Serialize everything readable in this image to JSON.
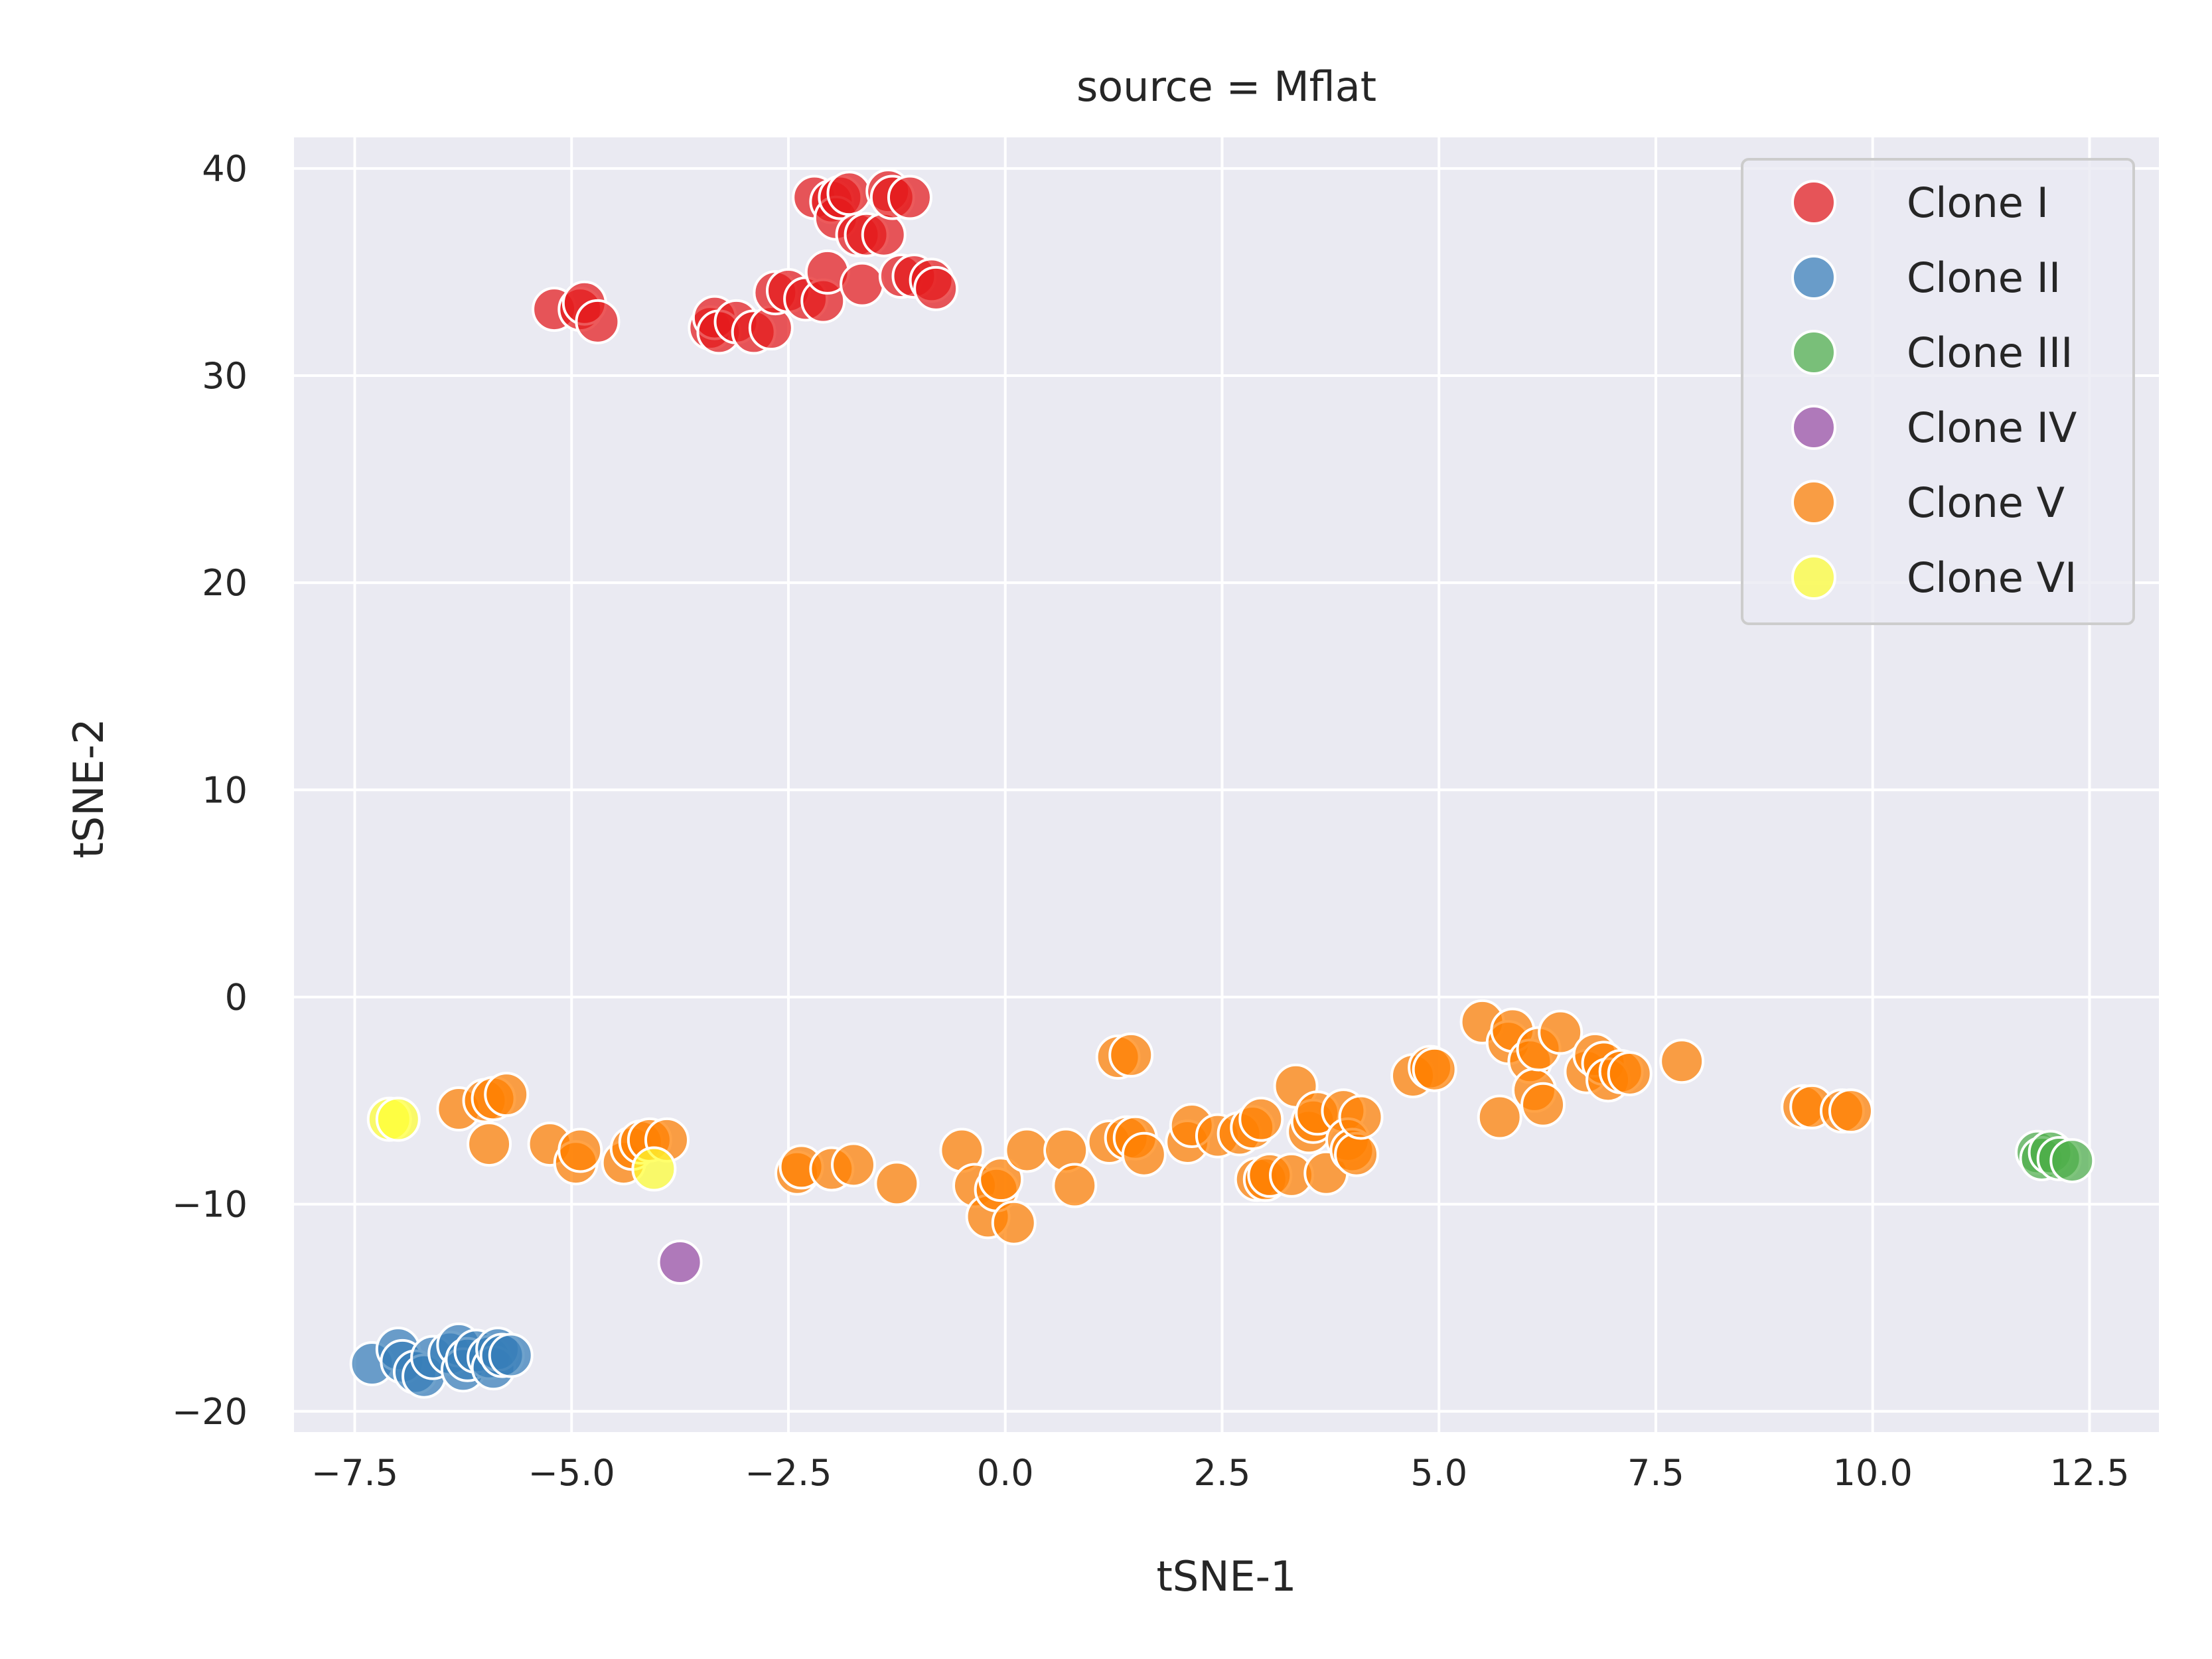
{
  "chart_data": {
    "type": "scatter",
    "title": "source = Mflat",
    "xlabel": "tSNE-1",
    "ylabel": "tSNE-2",
    "xlim": [
      -8.2,
      13.3
    ],
    "ylim": [
      -21,
      41.5
    ],
    "xticks": [
      -7.5,
      -5.0,
      -2.5,
      0.0,
      2.5,
      5.0,
      7.5,
      10.0,
      12.5
    ],
    "xtick_labels": [
      "−7.5",
      "−5.0",
      "−2.5",
      "0.0",
      "2.5",
      "5.0",
      "7.5",
      "10.0",
      "12.5"
    ],
    "yticks": [
      -20,
      -10,
      0,
      10,
      20,
      30,
      40
    ],
    "ytick_labels": [
      "−20",
      "−10",
      "0",
      "10",
      "20",
      "30",
      "40"
    ],
    "grid": true,
    "legend_position": "top-right",
    "background": "#eaeaf2",
    "series": [
      {
        "name": "Clone I",
        "color": "#e41a1c",
        "points": [
          [
            -5.2,
            33.2
          ],
          [
            -4.9,
            33.2
          ],
          [
            -4.85,
            33.5
          ],
          [
            -4.7,
            32.6
          ],
          [
            -3.4,
            32.3
          ],
          [
            -3.35,
            32.8
          ],
          [
            -3.3,
            32.1
          ],
          [
            -3.1,
            32.6
          ],
          [
            -2.9,
            32.1
          ],
          [
            -2.7,
            32.3
          ],
          [
            -2.65,
            34.0
          ],
          [
            -2.5,
            34.1
          ],
          [
            -2.3,
            33.7
          ],
          [
            -2.1,
            33.6
          ],
          [
            -2.05,
            35.0
          ],
          [
            -2.2,
            38.6
          ],
          [
            -2.0,
            38.4
          ],
          [
            -1.95,
            37.6
          ],
          [
            -1.9,
            38.6
          ],
          [
            -1.8,
            38.8
          ],
          [
            -1.7,
            36.8
          ],
          [
            -1.65,
            34.4
          ],
          [
            -1.6,
            36.8
          ],
          [
            -1.4,
            36.8
          ],
          [
            -1.35,
            38.9
          ],
          [
            -1.3,
            38.6
          ],
          [
            -1.1,
            38.6
          ],
          [
            -1.2,
            34.8
          ],
          [
            -1.05,
            34.8
          ],
          [
            -0.85,
            34.6
          ],
          [
            -0.8,
            34.2
          ]
        ]
      },
      {
        "name": "Clone II",
        "color": "#377eb8",
        "points": [
          [
            -7.3,
            -17.7
          ],
          [
            -7.0,
            -17.0
          ],
          [
            -6.95,
            -17.6
          ],
          [
            -6.8,
            -18.1
          ],
          [
            -6.7,
            -18.3
          ],
          [
            -6.6,
            -17.4
          ],
          [
            -6.4,
            -17.2
          ],
          [
            -6.3,
            -16.8
          ],
          [
            -6.25,
            -18.0
          ],
          [
            -6.2,
            -17.5
          ],
          [
            -6.1,
            -17.1
          ],
          [
            -5.95,
            -17.4
          ],
          [
            -5.9,
            -17.9
          ],
          [
            -5.85,
            -17.0
          ],
          [
            -5.8,
            -17.3
          ],
          [
            -5.7,
            -17.3
          ]
        ]
      },
      {
        "name": "Clone III",
        "color": "#4daf4a",
        "points": [
          [
            11.9,
            -7.5
          ],
          [
            11.95,
            -7.8
          ],
          [
            12.05,
            -7.5
          ],
          [
            12.15,
            -7.8
          ],
          [
            12.3,
            -7.9
          ]
        ]
      },
      {
        "name": "Clone IV",
        "color": "#984ea3",
        "points": [
          [
            -3.75,
            -12.8
          ]
        ]
      },
      {
        "name": "Clone V",
        "color": "#ff7f00",
        "points": [
          [
            -6.3,
            -5.4
          ],
          [
            -6.0,
            -5.0
          ],
          [
            -5.95,
            -7.1
          ],
          [
            -5.9,
            -4.9
          ],
          [
            -5.75,
            -4.7
          ],
          [
            -5.25,
            -7.1
          ],
          [
            -4.95,
            -8.0
          ],
          [
            -4.9,
            -7.4
          ],
          [
            -4.4,
            -8.0
          ],
          [
            -4.3,
            -7.3
          ],
          [
            -4.2,
            -7.0
          ],
          [
            -4.1,
            -6.9
          ],
          [
            -3.9,
            -6.9
          ],
          [
            -2.4,
            -8.5
          ],
          [
            -2.35,
            -8.2
          ],
          [
            -2.0,
            -8.3
          ],
          [
            -1.75,
            -8.1
          ],
          [
            -1.25,
            -9.0
          ],
          [
            -0.5,
            -7.4
          ],
          [
            -0.35,
            -9.1
          ],
          [
            -0.2,
            -10.6
          ],
          [
            -0.1,
            -9.3
          ],
          [
            -0.05,
            -8.8
          ],
          [
            0.1,
            -10.9
          ],
          [
            0.25,
            -7.4
          ],
          [
            0.7,
            -7.4
          ],
          [
            0.8,
            -9.1
          ],
          [
            1.2,
            -7.0
          ],
          [
            1.3,
            -2.9
          ],
          [
            1.45,
            -2.8
          ],
          [
            1.4,
            -6.8
          ],
          [
            1.5,
            -6.8
          ],
          [
            1.6,
            -7.6
          ],
          [
            2.1,
            -7.0
          ],
          [
            2.15,
            -6.2
          ],
          [
            2.45,
            -6.7
          ],
          [
            2.7,
            -6.6
          ],
          [
            2.85,
            -6.3
          ],
          [
            2.9,
            -8.8
          ],
          [
            2.95,
            -5.9
          ],
          [
            3.0,
            -8.8
          ],
          [
            3.05,
            -8.6
          ],
          [
            3.3,
            -8.6
          ],
          [
            3.35,
            -4.3
          ],
          [
            3.5,
            -6.5
          ],
          [
            3.55,
            -6.0
          ],
          [
            3.6,
            -5.6
          ],
          [
            3.7,
            -8.5
          ],
          [
            3.9,
            -5.5
          ],
          [
            3.95,
            -6.9
          ],
          [
            4.0,
            -7.4
          ],
          [
            4.05,
            -7.6
          ],
          [
            4.1,
            -5.8
          ],
          [
            4.7,
            -3.8
          ],
          [
            4.9,
            -3.4
          ],
          [
            4.95,
            -3.5
          ],
          [
            5.5,
            -1.2
          ],
          [
            5.7,
            -5.8
          ],
          [
            5.8,
            -2.2
          ],
          [
            5.85,
            -1.6
          ],
          [
            6.05,
            -3.1
          ],
          [
            6.1,
            -4.5
          ],
          [
            6.15,
            -2.5
          ],
          [
            6.2,
            -5.2
          ],
          [
            6.4,
            -1.7
          ],
          [
            6.7,
            -3.6
          ],
          [
            6.8,
            -2.8
          ],
          [
            6.9,
            -3.2
          ],
          [
            6.95,
            -4.0
          ],
          [
            7.1,
            -3.6
          ],
          [
            7.2,
            -3.7
          ],
          [
            7.8,
            -3.1
          ],
          [
            9.2,
            -5.3
          ],
          [
            9.3,
            -5.3
          ],
          [
            9.65,
            -5.5
          ],
          [
            9.75,
            -5.5
          ]
        ]
      },
      {
        "name": "Clone VI",
        "color": "#ffff33",
        "points": [
          [
            -7.1,
            -5.9
          ],
          [
            -7.0,
            -5.9
          ],
          [
            -4.05,
            -8.3
          ]
        ]
      }
    ]
  }
}
